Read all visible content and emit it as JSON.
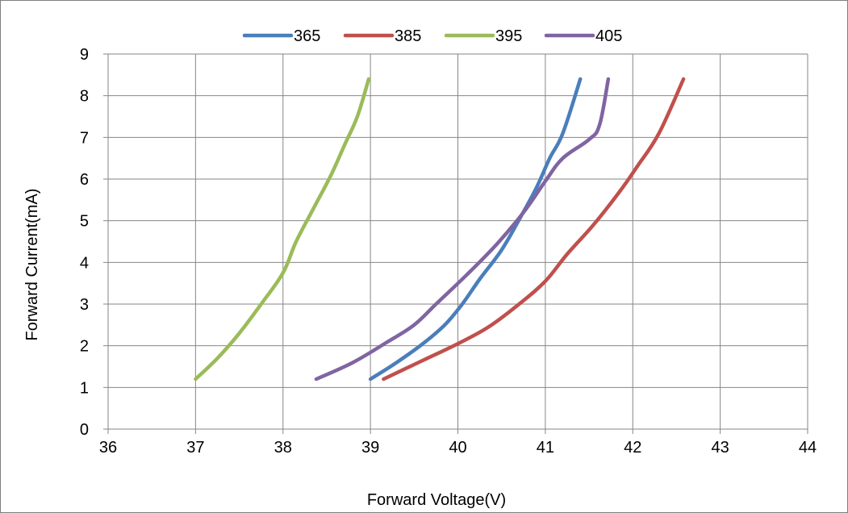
{
  "chart_data": {
    "type": "line",
    "title": "",
    "xlabel": "Forward Voltage(V)",
    "ylabel": "Forward Current(mA)",
    "xlim": [
      36,
      44
    ],
    "ylim": [
      0,
      9
    ],
    "x_ticks": [
      "36",
      "37",
      "38",
      "39",
      "40",
      "41",
      "42",
      "43",
      "44"
    ],
    "y_ticks": [
      "0",
      "1",
      "2",
      "3",
      "4",
      "5",
      "6",
      "7",
      "8",
      "9"
    ],
    "grid": true,
    "legend_position": "top",
    "series": [
      {
        "name": "365",
        "color": "#4a7ebb",
        "points": [
          [
            39.0,
            1.2
          ],
          [
            39.3,
            1.6
          ],
          [
            39.6,
            2.05
          ],
          [
            39.85,
            2.5
          ],
          [
            40.05,
            3.0
          ],
          [
            40.25,
            3.6
          ],
          [
            40.5,
            4.3
          ],
          [
            40.72,
            5.1
          ],
          [
            40.9,
            5.8
          ],
          [
            41.05,
            6.5
          ],
          [
            41.2,
            7.1
          ],
          [
            41.4,
            8.4
          ]
        ]
      },
      {
        "name": "385",
        "color": "#c0504d",
        "points": [
          [
            39.15,
            1.2
          ],
          [
            39.6,
            1.65
          ],
          [
            40.0,
            2.05
          ],
          [
            40.35,
            2.45
          ],
          [
            40.7,
            3.0
          ],
          [
            41.0,
            3.55
          ],
          [
            41.25,
            4.2
          ],
          [
            41.55,
            4.9
          ],
          [
            41.85,
            5.7
          ],
          [
            42.05,
            6.3
          ],
          [
            42.3,
            7.1
          ],
          [
            42.58,
            8.4
          ]
        ]
      },
      {
        "name": "395",
        "color": "#9bbb59",
        "points": [
          [
            37.0,
            1.2
          ],
          [
            37.25,
            1.7
          ],
          [
            37.5,
            2.3
          ],
          [
            37.75,
            3.0
          ],
          [
            38.0,
            3.75
          ],
          [
            38.15,
            4.5
          ],
          [
            38.35,
            5.3
          ],
          [
            38.55,
            6.1
          ],
          [
            38.7,
            6.8
          ],
          [
            38.85,
            7.5
          ],
          [
            38.98,
            8.4
          ]
        ]
      },
      {
        "name": "405",
        "color": "#8064a2",
        "points": [
          [
            38.38,
            1.2
          ],
          [
            38.8,
            1.6
          ],
          [
            39.2,
            2.1
          ],
          [
            39.5,
            2.5
          ],
          [
            39.75,
            3.0
          ],
          [
            40.1,
            3.7
          ],
          [
            40.45,
            4.45
          ],
          [
            40.75,
            5.2
          ],
          [
            41.0,
            5.95
          ],
          [
            41.2,
            6.5
          ],
          [
            41.5,
            6.95
          ],
          [
            41.62,
            7.3
          ],
          [
            41.72,
            8.4
          ]
        ]
      }
    ]
  }
}
